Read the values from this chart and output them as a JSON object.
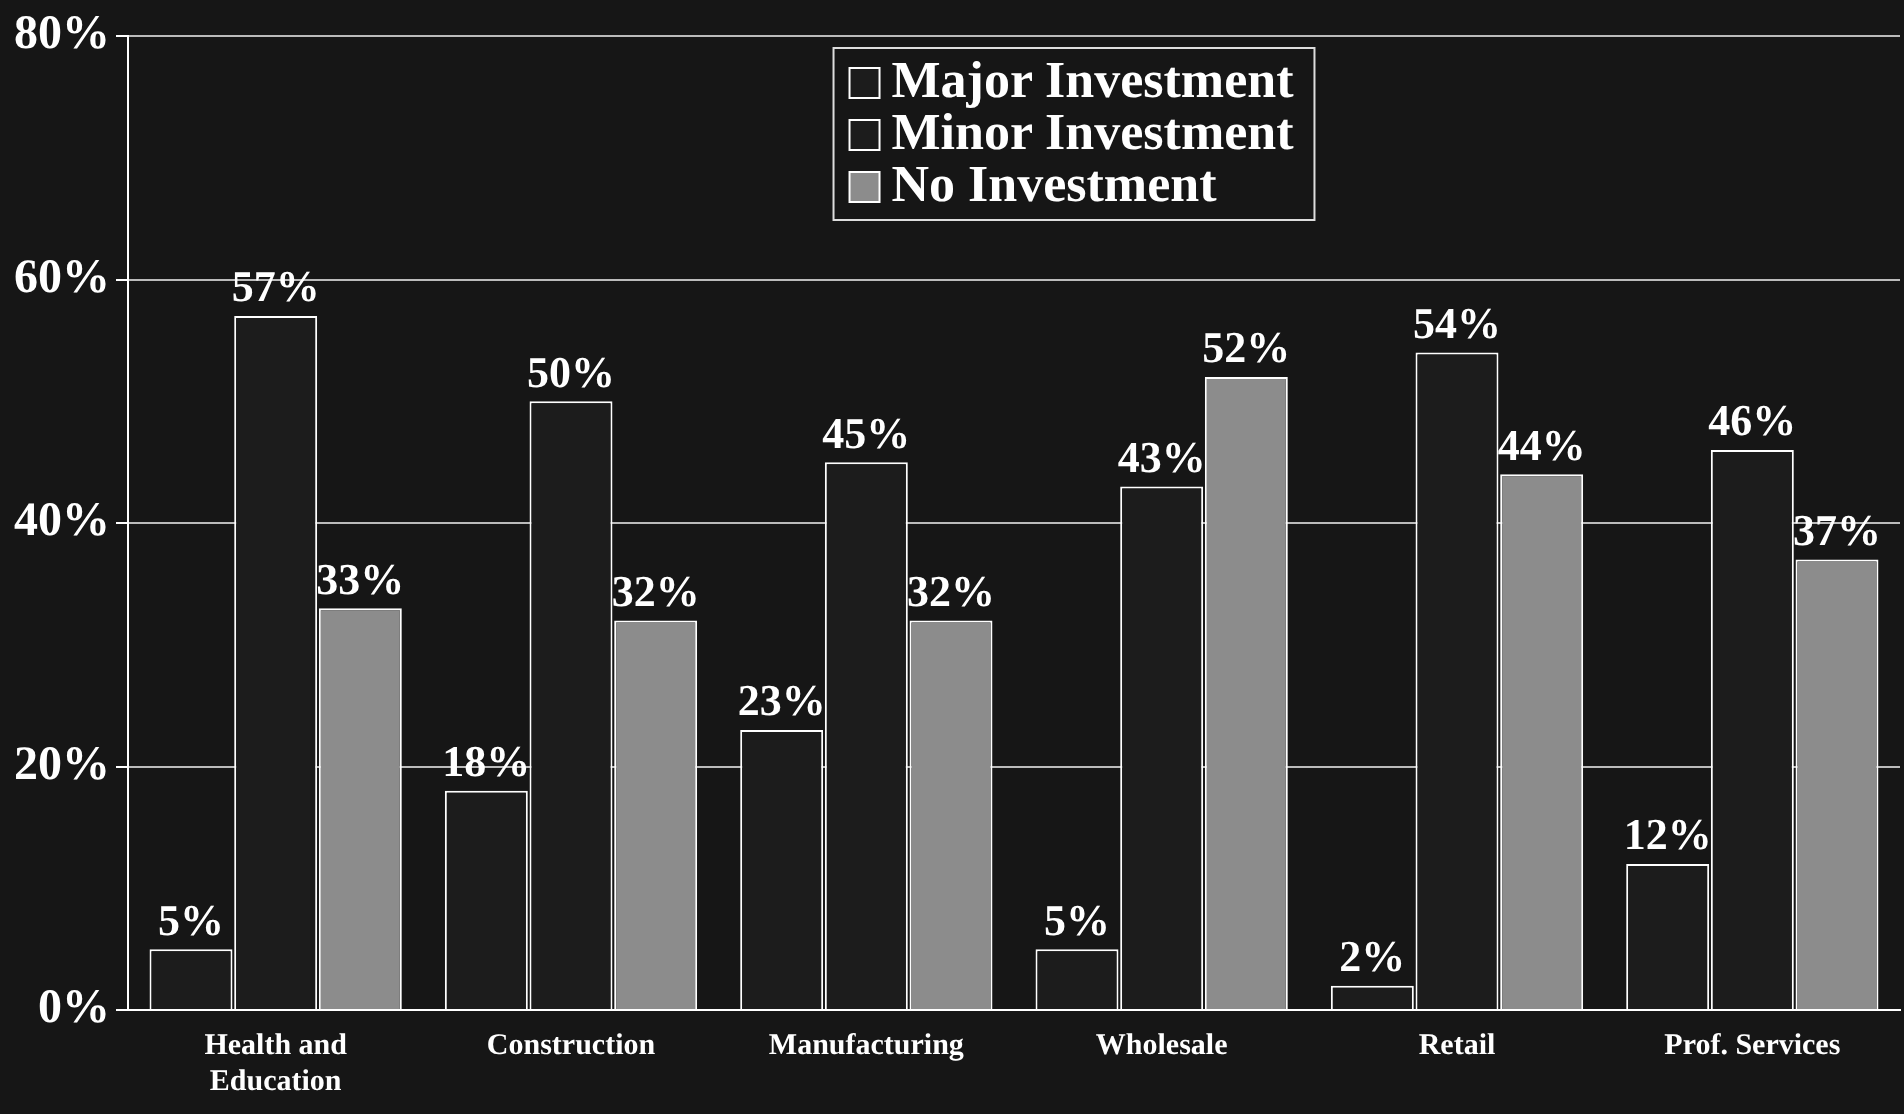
{
  "chart_data": {
    "type": "bar",
    "categories": [
      "Health and Education",
      "Construction",
      "Manufacturing",
      "Wholesale",
      "Retail",
      "Prof. Services"
    ],
    "series": [
      {
        "name": "Major Investment",
        "color": "#1c1c1c",
        "values": [
          5,
          18,
          23,
          5,
          2,
          12
        ],
        "value_labels": [
          "5%",
          "18%",
          "23%",
          "5%",
          "2%",
          "12%"
        ]
      },
      {
        "name": "Minor Investment",
        "color": "#1c1c1c",
        "values": [
          57,
          50,
          45,
          43,
          54,
          46
        ],
        "value_labels": [
          "57%",
          "50%",
          "45%",
          "43%",
          "54%",
          "46%"
        ]
      },
      {
        "name": "No Investment",
        "color": "#8c8c8c",
        "values": [
          33,
          32,
          32,
          52,
          44,
          37
        ],
        "value_labels": [
          "33%",
          "32%",
          "32%",
          "52%",
          "44%",
          "37%"
        ]
      }
    ],
    "ylim": [
      0,
      80
    ],
    "yticks": [
      {
        "value": 0,
        "label": "0%"
      },
      {
        "value": 20,
        "label": "20%"
      },
      {
        "value": 40,
        "label": "40%"
      },
      {
        "value": 60,
        "label": "60%"
      },
      {
        "value": 80,
        "label": "80%"
      }
    ],
    "grid": "y",
    "legend": "top"
  }
}
